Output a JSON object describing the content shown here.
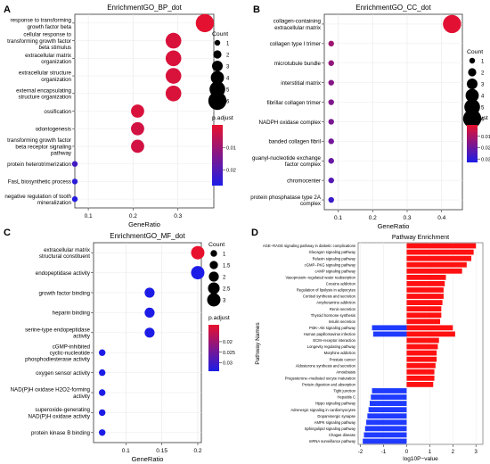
{
  "colors": {
    "red": "#e8112d",
    "blue": "#1c1ce6",
    "purple": "#8a2be2",
    "up": "#ff1111",
    "down": "#1f3bff"
  },
  "chart_data": [
    {
      "panel": "A",
      "type": "scatter",
      "title": "EnrichmentGO_BP_dot",
      "xlabel": "GeneRatio",
      "ylabel": "",
      "xlim": [
        0.07,
        0.38
      ],
      "xticks": [
        0.1,
        0.2,
        0.3
      ],
      "categories": [
        [
          "response to transforming",
          "growth factor beta"
        ],
        [
          "cellular response to",
          "transforming growth factor",
          "beta stimulus"
        ],
        [
          "extracellular matrix",
          "organization"
        ],
        [
          "extracellular structure",
          "organization"
        ],
        [
          "external encapsulating",
          "structure organization"
        ],
        [
          "ossification"
        ],
        [
          "odontogenesis"
        ],
        [
          "transforming growth factor",
          "beta receptor signaling",
          "pathway"
        ],
        [
          "protein heterotrimerization"
        ],
        [
          "FasL biosynthetic process"
        ],
        [
          "negative regulation of tooth",
          "mineralization"
        ]
      ],
      "x": [
        0.36,
        0.29,
        0.29,
        0.29,
        0.29,
        0.21,
        0.21,
        0.21,
        0.07,
        0.07,
        0.07
      ],
      "count": [
        6,
        5,
        5,
        5,
        5,
        4,
        4,
        4,
        1,
        1,
        1
      ],
      "padjust": [
        0.0005,
        0.002,
        0.002,
        0.002,
        0.002,
        0.002,
        0.003,
        0.003,
        0.022,
        0.025,
        0.026
      ],
      "legend": {
        "count_title": "Count",
        "count_values": [
          1,
          2,
          3,
          4,
          5,
          6
        ],
        "padj_title": "p.adjust",
        "padj_ticks": [
          0.01,
          0.02
        ],
        "padj_range": [
          0.0,
          0.027
        ]
      }
    },
    {
      "panel": "B",
      "type": "scatter",
      "title": "EnrichmentGO_CC_dot",
      "xlabel": "GeneRatio",
      "ylabel": "",
      "xlim": [
        0.06,
        0.46
      ],
      "xticks": [
        0.1,
        0.2,
        0.3,
        0.4
      ],
      "categories": [
        [
          "collagen-containing",
          "extracellular matrix"
        ],
        [
          "collagen type I trimer"
        ],
        [
          "microtubule bundle"
        ],
        [
          "interstitial matrix"
        ],
        [
          "fibrillar collagen trimer"
        ],
        [
          "NADPH oxidase complex"
        ],
        [
          "banded collagen fibril"
        ],
        [
          "guanyl-nucleotide exchange",
          "factor complex"
        ],
        [
          "chromocenter"
        ],
        [
          "protein phosphatase type 2A",
          "complex"
        ]
      ],
      "x": [
        0.43,
        0.08,
        0.08,
        0.08,
        0.08,
        0.08,
        0.08,
        0.08,
        0.08,
        0.08
      ],
      "count": [
        6,
        1,
        1,
        1,
        1,
        1,
        1,
        1,
        1,
        1
      ],
      "padjust": [
        0.001,
        0.012,
        0.014,
        0.016,
        0.017,
        0.018,
        0.019,
        0.021,
        0.024,
        0.028
      ],
      "legend": {
        "count_title": "Count",
        "count_values": [
          1,
          2,
          3,
          4,
          5,
          6
        ],
        "padj_title": "p.adjust",
        "padj_ticks": [
          0.01,
          0.02,
          0.03
        ],
        "padj_range": [
          0.0,
          0.033
        ]
      }
    },
    {
      "panel": "C",
      "type": "scatter",
      "title": "EnrichmentGO_MF_dot",
      "xlabel": "GeneRatio",
      "ylabel": "",
      "xlim": [
        0.055,
        0.205
      ],
      "xticks": [
        0.1,
        0.15,
        0.2
      ],
      "categories": [
        [
          "extracellular matrix",
          "structural constituent"
        ],
        [
          "endopeptidase activity"
        ],
        [
          "growth factor binding"
        ],
        [
          "heparin binding"
        ],
        [
          "serine-type endopeptidase",
          "activity"
        ],
        [
          "cGMP-inhibited",
          "cyclic-nucleotide",
          "phosphodiesterase activity"
        ],
        [
          "oxygen sensor activity"
        ],
        [
          "NAD(P)H oxidase H2O2-forming",
          "activity"
        ],
        [
          "superoxide-generating",
          "NAD(P)H oxidase activity"
        ],
        [
          "protein kinase B binding"
        ]
      ],
      "x": [
        0.2,
        0.2,
        0.133,
        0.133,
        0.133,
        0.067,
        0.067,
        0.067,
        0.067,
        0.067
      ],
      "count": [
        3,
        3,
        2,
        2,
        2,
        1,
        1,
        1,
        1,
        1
      ],
      "padjust": [
        0.012,
        0.034,
        0.034,
        0.034,
        0.034,
        0.034,
        0.034,
        0.034,
        0.034,
        0.034
      ],
      "legend": {
        "count_title": "Count",
        "count_values": [
          1.0,
          1.5,
          2.0,
          2.5,
          3.0
        ],
        "padj_title": "p.adjust",
        "padj_ticks": [
          0.02,
          0.025,
          0.03
        ],
        "padj_range": [
          0.012,
          0.034
        ]
      }
    },
    {
      "panel": "D",
      "type": "bar",
      "title": "Pathway Enrichment",
      "xlabel": "log10P−value",
      "ylabel": "Pathway Names",
      "xlim": [
        -2.1,
        3.3
      ],
      "xticks": [
        -2,
        -1,
        0,
        1,
        2,
        3
      ],
      "categories": [
        "AGE−RAGE signaling pathway in diabetic complications",
        "Glucagon signaling pathway",
        "Relaxin signaling pathway",
        "cGMP−PKG signaling pathway",
        "cAMP signaling pathway",
        "Vasopressin−regulated water reabsorption",
        "Cocaine addiction",
        "Regulation of lipolysis in adipocytes",
        "Cortisol synthesis and secretion",
        "Amphetamine addiction",
        "Renin secretion",
        "Thyroid hormone synthesis",
        "Insulin secretion",
        "PI3K−Akt signaling pathway",
        "Human papillomavirus infection",
        "ECM−receptor interaction",
        "Longevity regulating pathway",
        "Morphine addiction",
        "Prostate cancer",
        "Aldosterone synthesis and secretion",
        "Amoebiasis",
        "Progesterone−mediated oocyte maturation",
        "Protein digestion and absorption",
        "Tight junction",
        "Hepatitis C",
        "Hippo signaling pathway",
        "Adrenergic signaling in cardiomyocytes",
        "Dopaminergic synapse",
        "AMPK signaling pathway",
        "Sphingolipid signaling pathway",
        "Chagas disease",
        "mRNA surveillance pathway"
      ],
      "values": [
        3.0,
        2.9,
        2.8,
        2.6,
        2.4,
        1.7,
        1.65,
        1.6,
        1.6,
        1.55,
        1.5,
        1.5,
        1.45,
        2.0,
        2.1,
        1.4,
        1.35,
        1.3,
        1.3,
        1.25,
        1.2,
        1.2,
        1.15,
        -1.5,
        -1.55,
        -1.6,
        -1.65,
        -1.7,
        -1.75,
        -1.8,
        -1.85,
        -1.9
      ],
      "neg_offsets": [
        0,
        0,
        0,
        0,
        0,
        0,
        0,
        0,
        0,
        0,
        0,
        0,
        0,
        -1.5,
        -1.45,
        0,
        0,
        0,
        0,
        0,
        0,
        0,
        0,
        0,
        0,
        0,
        0,
        0,
        0,
        0,
        0,
        0
      ]
    }
  ],
  "panel_letters": [
    "A",
    "B",
    "C",
    "D"
  ]
}
